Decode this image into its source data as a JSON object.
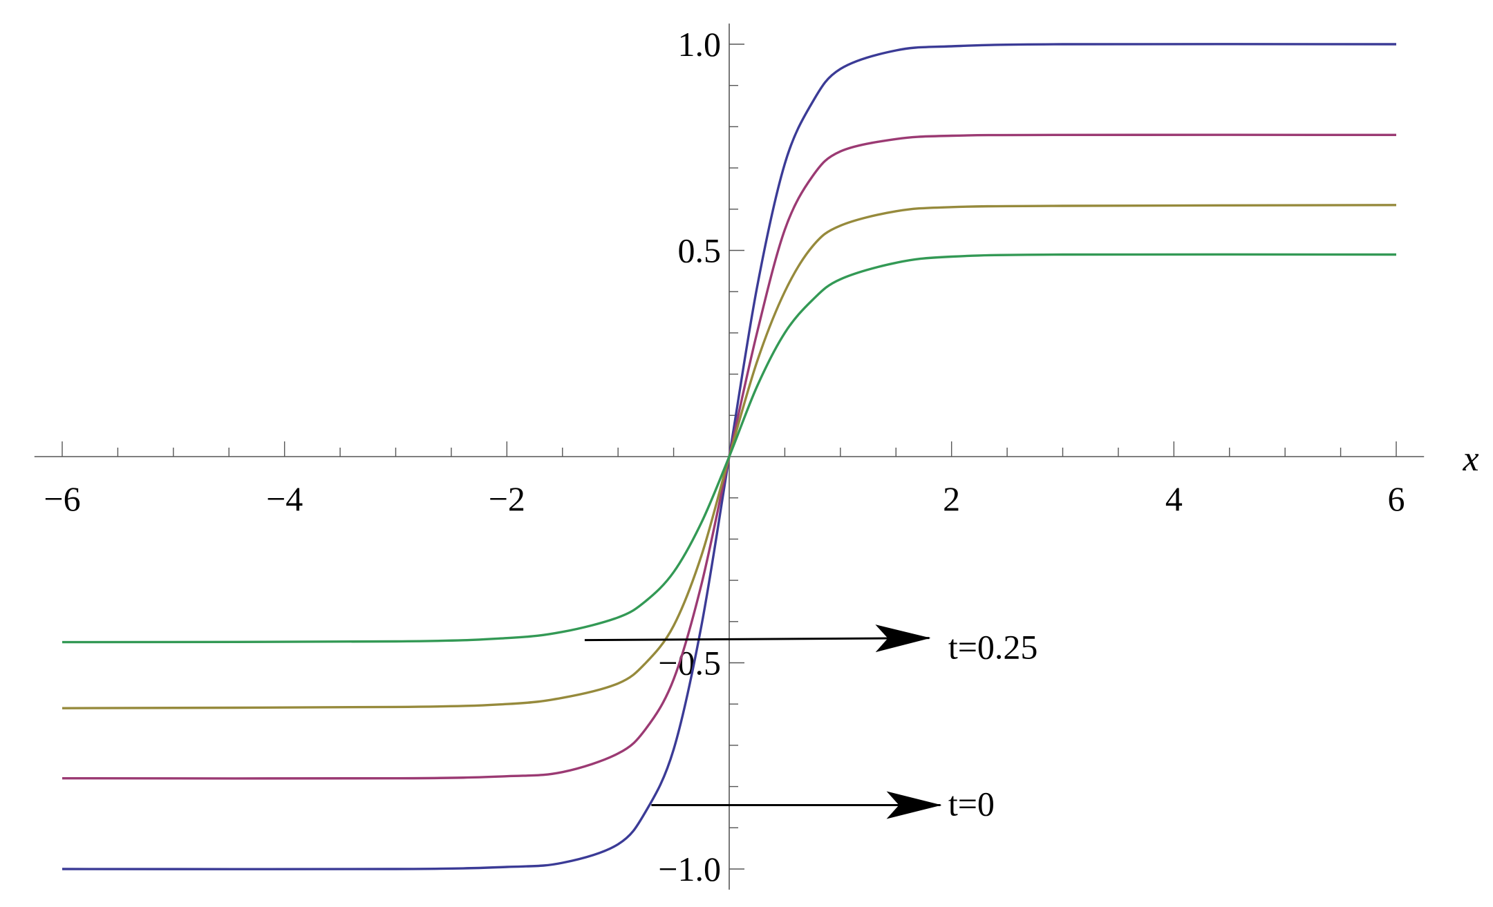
{
  "chart_data": {
    "type": "line",
    "title": "",
    "xlabel": "x",
    "ylabel": "",
    "xlim": [
      -6.25,
      6.25
    ],
    "ylim": [
      -1.05,
      1.05
    ],
    "x_ticks": [
      {
        "value": -6,
        "label": "−6"
      },
      {
        "value": -4,
        "label": "−4"
      },
      {
        "value": -2,
        "label": "−2"
      },
      {
        "value": 2,
        "label": "2"
      },
      {
        "value": 4,
        "label": "4"
      },
      {
        "value": 6,
        "label": "6"
      }
    ],
    "y_ticks": [
      {
        "value": -1.0,
        "label": "−1.0"
      },
      {
        "value": -0.5,
        "label": "−0.5"
      },
      {
        "value": 0.5,
        "label": "0.5"
      },
      {
        "value": 1.0,
        "label": "1.0"
      }
    ],
    "x_minor_step": 0.5,
    "y_minor_step": 0.1,
    "grid": false,
    "legend": "none",
    "series": [
      {
        "color": "#3b3b96",
        "x": [
          -6,
          -3,
          -2,
          -1.5,
          -1,
          -0.75,
          -0.5,
          -0.25,
          0,
          0.25,
          0.5,
          0.75,
          1,
          1.5,
          2,
          3,
          6
        ],
        "y": [
          -1.0,
          -1.0,
          -0.995,
          -0.985,
          -0.94,
          -0.86,
          -0.71,
          -0.41,
          0,
          0.41,
          0.71,
          0.86,
          0.94,
          0.985,
          0.995,
          1.0,
          1.0
        ]
      },
      {
        "color": "#9b3a73",
        "x": [
          -6,
          -3,
          -2,
          -1.5,
          -1,
          -0.75,
          -0.5,
          -0.25,
          0,
          0.25,
          0.5,
          0.75,
          1,
          1.5,
          2,
          3,
          6
        ],
        "y": [
          -0.78,
          -0.78,
          -0.775,
          -0.765,
          -0.72,
          -0.66,
          -0.54,
          -0.31,
          0,
          0.3,
          0.55,
          0.68,
          0.74,
          0.77,
          0.778,
          0.78,
          0.78
        ]
      },
      {
        "color": "#968a3c",
        "x": [
          -6,
          -3,
          -2,
          -1.5,
          -1,
          -0.75,
          -0.5,
          -0.25,
          0,
          0.25,
          0.5,
          0.75,
          1,
          1.5,
          2,
          3,
          6
        ],
        "y": [
          -0.61,
          -0.607,
          -0.6,
          -0.585,
          -0.55,
          -0.5,
          -0.41,
          -0.24,
          0,
          0.23,
          0.4,
          0.51,
          0.56,
          0.595,
          0.605,
          0.608,
          0.61
        ]
      },
      {
        "color": "#339955",
        "x": [
          -6,
          -3,
          -2,
          -1.5,
          -1,
          -0.75,
          -0.5,
          -0.25,
          0,
          0.25,
          0.5,
          0.75,
          1,
          1.5,
          2,
          3,
          6
        ],
        "y": [
          -0.45,
          -0.448,
          -0.44,
          -0.425,
          -0.39,
          -0.35,
          -0.28,
          -0.16,
          0,
          0.17,
          0.3,
          0.38,
          0.43,
          0.47,
          0.485,
          0.49,
          0.49
        ]
      }
    ],
    "annotations": [
      {
        "text": "t=0.25",
        "arrow_from": [
          -1.3,
          -0.445
        ],
        "arrow_to": [
          1.8,
          -0.44
        ],
        "label_at": [
          1.97,
          -0.49
        ]
      },
      {
        "text": "t=0",
        "arrow_from": [
          -0.7,
          -0.845
        ],
        "arrow_to": [
          1.9,
          -0.845
        ],
        "label_at": [
          1.97,
          -0.87
        ]
      }
    ]
  }
}
